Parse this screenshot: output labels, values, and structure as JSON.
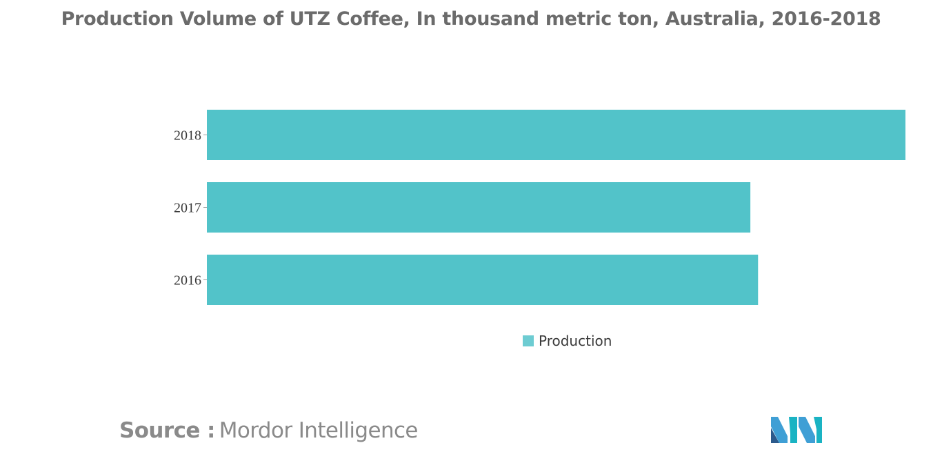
{
  "header": {
    "title": "Production Volume of UTZ Coffee, In thousand metric ton, Australia, 2016-2018"
  },
  "chart_data": {
    "type": "bar",
    "orientation": "horizontal",
    "title": "Production Volume of UTZ Coffee, In thousand metric ton, Australia, 2016-2018",
    "xlabel": "",
    "ylabel": "",
    "categories": [
      "2018",
      "2017",
      "2016"
    ],
    "series": [
      {
        "name": "Production",
        "values": [
          100,
          77.8,
          78.9
        ],
        "color": "#52c3c9"
      }
    ],
    "xlim": [
      0,
      100
    ],
    "grid": false,
    "legend_position": "bottom-center"
  },
  "legend": {
    "items": [
      {
        "label": "Production",
        "color": "#6dccd2"
      }
    ]
  },
  "source": {
    "prefix": "Source :",
    "name": "Mordor Intelligence"
  },
  "logo": {
    "icon": "mordor-intelligence-logo",
    "colors": [
      "#3f9fd5",
      "#1ab3c3",
      "#2c5a8c"
    ]
  }
}
